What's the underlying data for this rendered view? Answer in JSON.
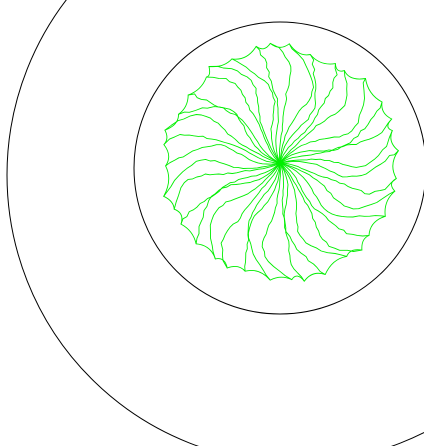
{
  "colors": {
    "background": "#ffffff",
    "outline": "#000000",
    "pattern": "#00ee00"
  },
  "figure": {
    "strand_count": 36
  }
}
